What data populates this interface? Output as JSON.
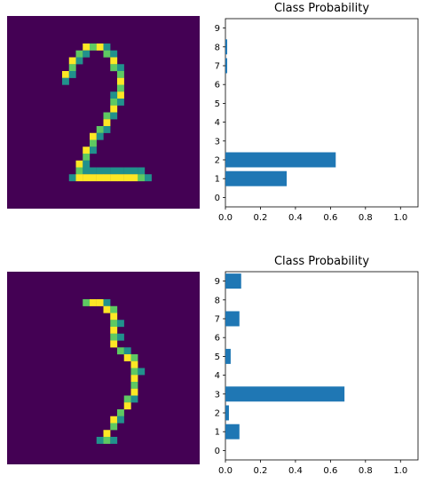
{
  "colors": {
    "image_background": "#440154",
    "bar": "#1f77b4",
    "pixel_low": "#21918c",
    "pixel_mid": "#5ec962",
    "pixel_high": "#fde725"
  },
  "images": [
    {
      "digit_shown": "2"
    },
    {
      "digit_shown": "3"
    }
  ],
  "chart_data": [
    {
      "type": "bar",
      "orientation": "horizontal",
      "title": "Class Probability",
      "categories": [
        "0",
        "1",
        "2",
        "3",
        "4",
        "5",
        "6",
        "7",
        "8",
        "9"
      ],
      "values": [
        0.0,
        0.35,
        0.63,
        0.0,
        0.0,
        0.0,
        0.0,
        0.01,
        0.01,
        0.0
      ],
      "xlim": [
        0,
        1.1
      ],
      "xticks": [
        "0.0",
        "0.2",
        "0.4",
        "0.6",
        "0.8",
        "1.0"
      ],
      "grid": false
    },
    {
      "type": "bar",
      "orientation": "horizontal",
      "title": "Class Probability",
      "categories": [
        "0",
        "1",
        "2",
        "3",
        "4",
        "5",
        "6",
        "7",
        "8",
        "9"
      ],
      "values": [
        0.0,
        0.08,
        0.02,
        0.68,
        0.0,
        0.03,
        0.0,
        0.08,
        0.0,
        0.09
      ],
      "xlim": [
        0,
        1.1
      ],
      "xticks": [
        "0.0",
        "0.2",
        "0.4",
        "0.6",
        "0.8",
        "1.0"
      ],
      "grid": false
    }
  ]
}
